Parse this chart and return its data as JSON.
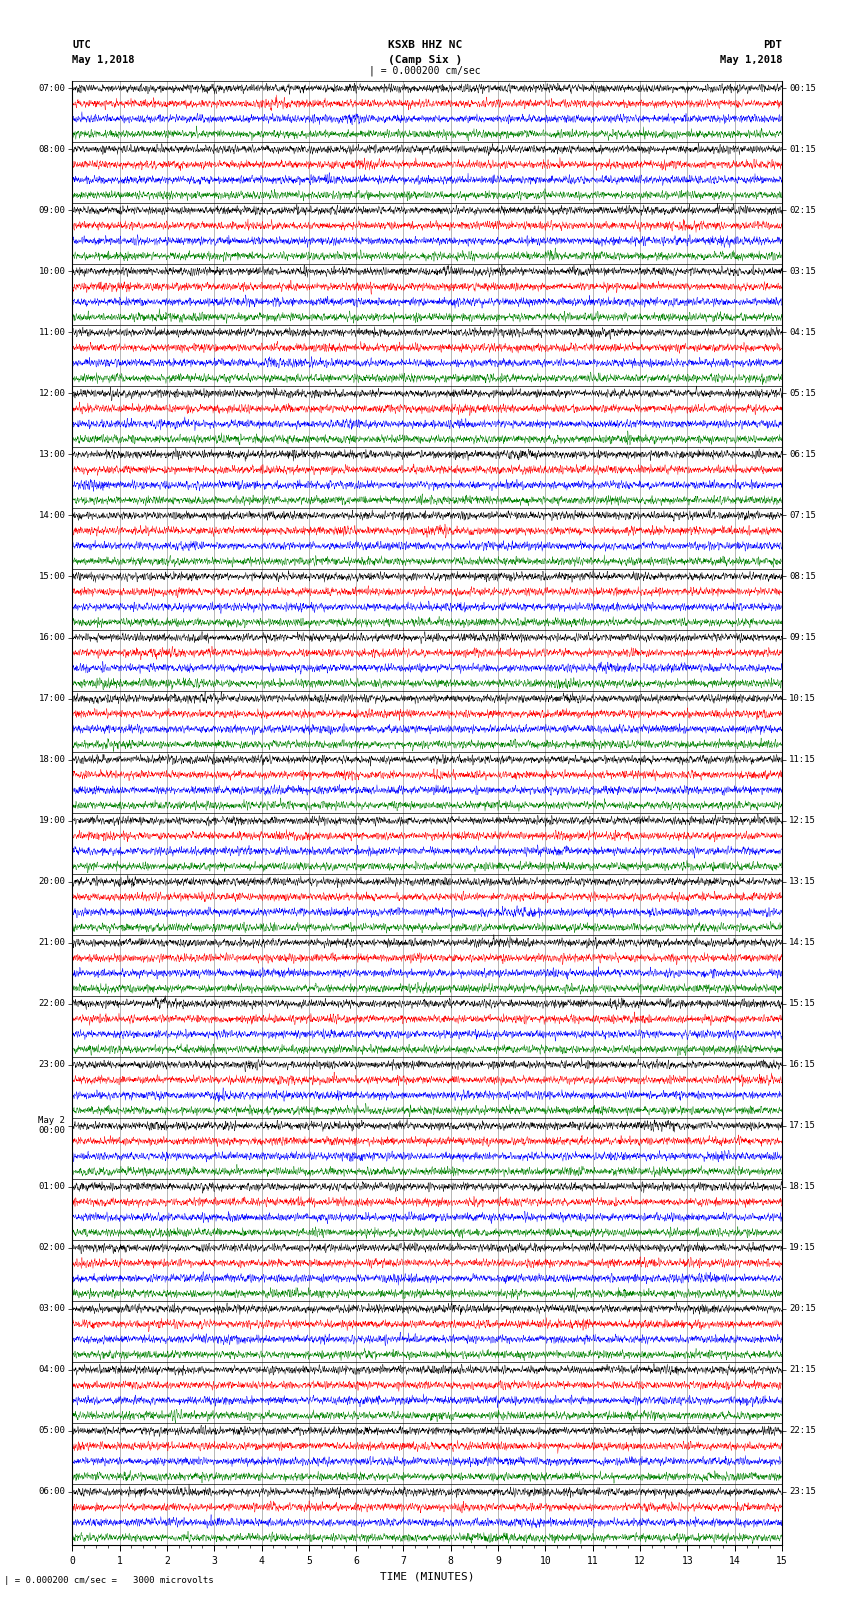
{
  "title_line1": "KSXB HHZ NC",
  "title_line2": "(Camp Six )",
  "left_label": "UTC",
  "left_date": "May 1,2018",
  "right_label": "PDT",
  "right_date": "May 1,2018",
  "scale_header": "| = 0.000200 cm/sec",
  "scale_note": "| = 0.000200 cm/sec =   3000 microvolts",
  "xlabel": "TIME (MINUTES)",
  "x_min": 0,
  "x_max": 15,
  "utc_times_main": [
    "07:00",
    "08:00",
    "09:00",
    "10:00",
    "11:00",
    "12:00",
    "13:00",
    "14:00",
    "15:00",
    "16:00",
    "17:00",
    "18:00",
    "19:00",
    "20:00",
    "21:00",
    "22:00",
    "23:00",
    "00:00",
    "01:00",
    "02:00",
    "03:00",
    "04:00",
    "05:00",
    "06:00"
  ],
  "pdt_times": [
    "00:15",
    "01:15",
    "02:15",
    "03:15",
    "04:15",
    "05:15",
    "06:15",
    "07:15",
    "08:15",
    "09:15",
    "10:15",
    "11:15",
    "12:15",
    "13:15",
    "14:15",
    "15:15",
    "16:15",
    "17:15",
    "18:15",
    "19:15",
    "20:15",
    "21:15",
    "22:15",
    "23:15"
  ],
  "trace_colors": [
    "black",
    "red",
    "blue",
    "green"
  ],
  "n_rows": 24,
  "traces_per_row": 4,
  "may2_row_index": 17,
  "background_color": "white",
  "figsize": [
    8.5,
    16.13
  ],
  "dpi": 100,
  "trace_amplitude": 0.32,
  "n_samples": 3600,
  "lw": 0.3
}
